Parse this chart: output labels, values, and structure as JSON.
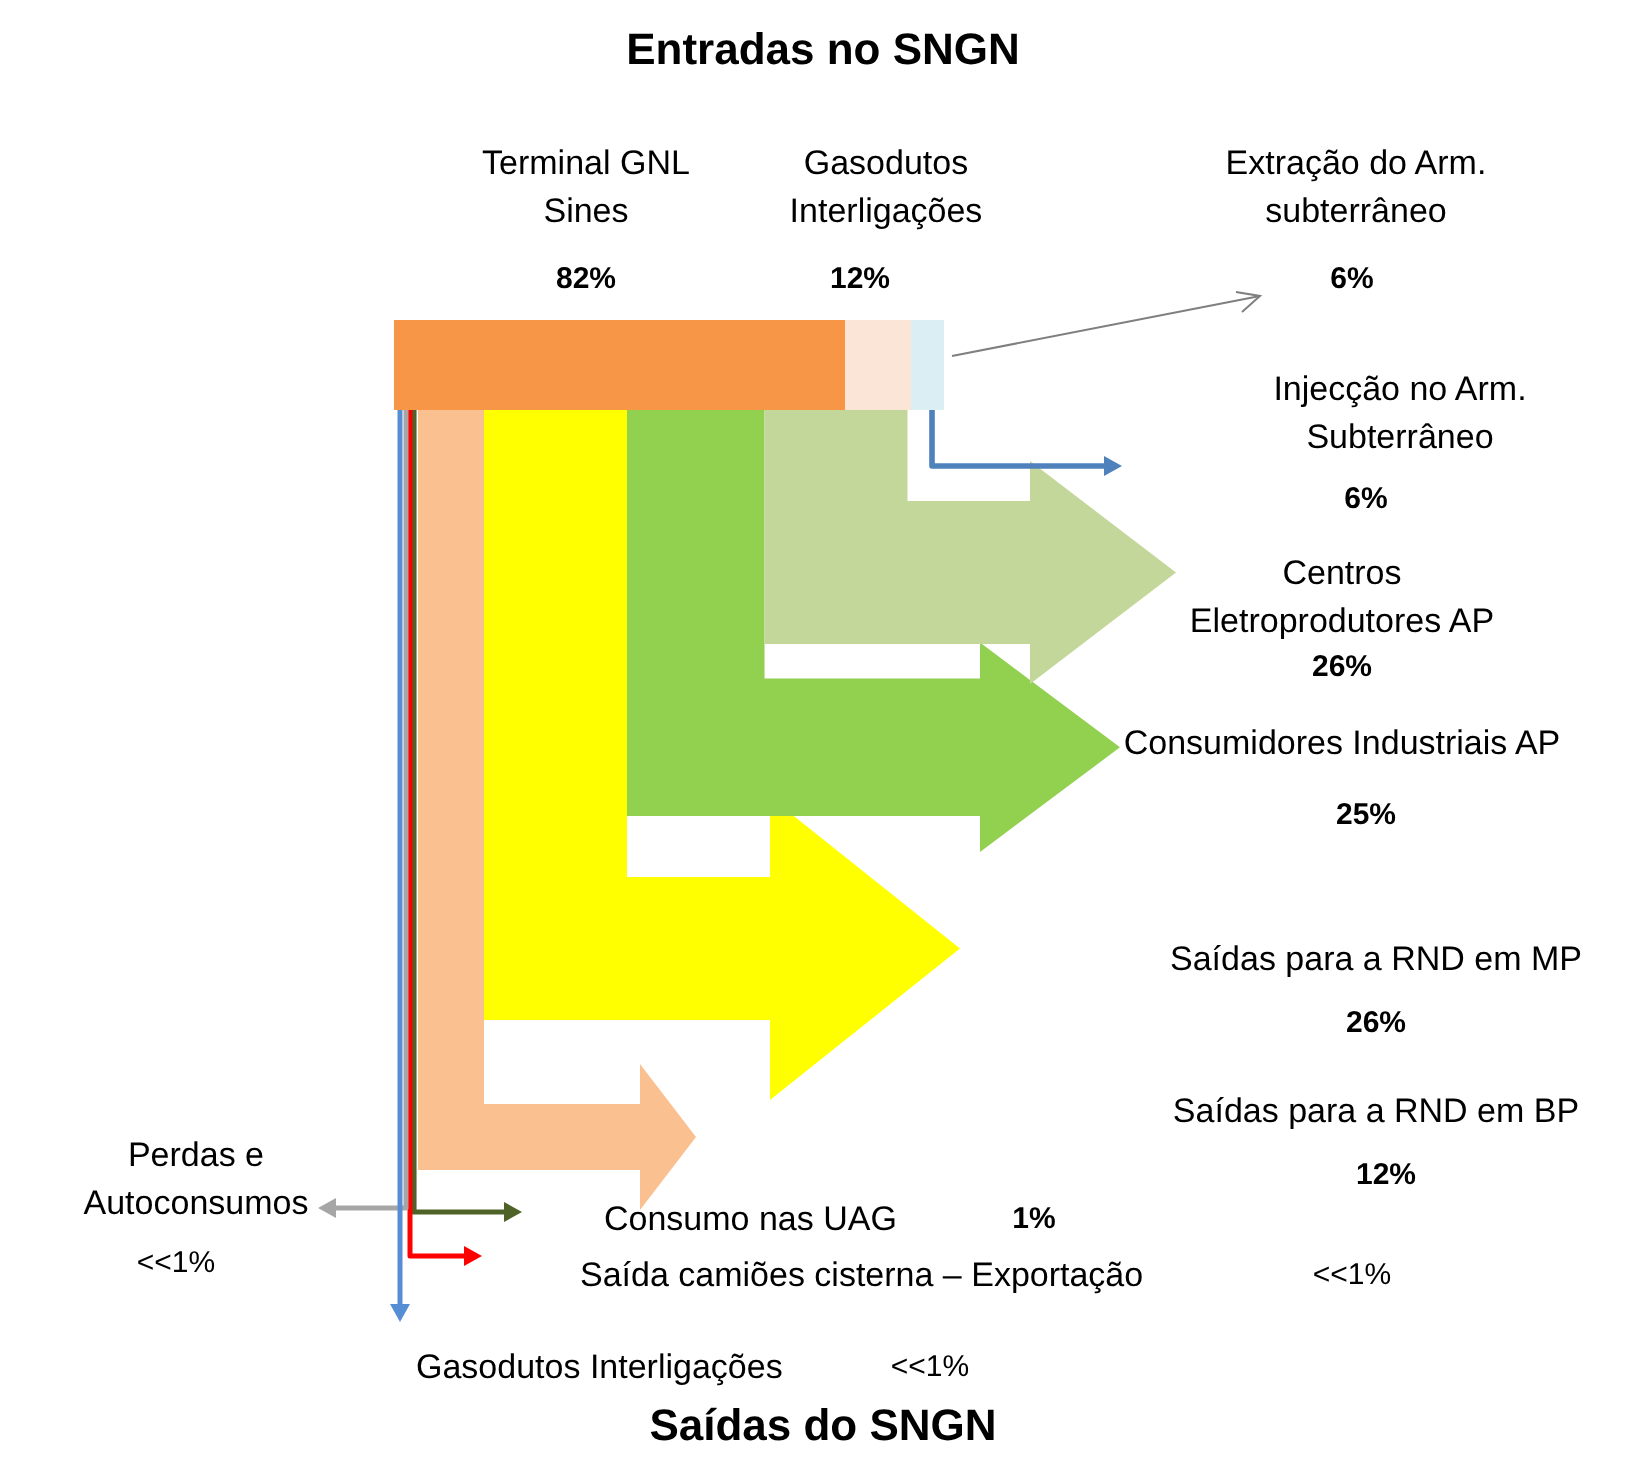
{
  "chart_data": {
    "type": "other",
    "title": "Entradas no SNGN",
    "annotations": [
      "Saídas do SNGN"
    ],
    "categories": [
      "Terminal GNL Sines",
      "Gasodutos Interligações",
      "Extração do Arm. subterrâneo",
      "Injecção no Arm. Subterrâneo",
      "Centros Eletroprodutores AP",
      "Consumidores Industriais AP",
      "Saídas para a RND em MP",
      "Saídas para a RND em BP",
      "Consumo nas UAG",
      "Saída camiões cisterna – Exportação",
      "Perdas e Autoconsumos",
      "Gasodutos Interligações"
    ],
    "series": [
      {
        "values": [
          82,
          12,
          6,
          null,
          null,
          null,
          null,
          null,
          null,
          null,
          null,
          null
        ],
        "value_labels": [
          "82%",
          "12%",
          "6%",
          null,
          null,
          null,
          null,
          null,
          null,
          null,
          null,
          null
        ],
        "colors": [
          "#f79646",
          "#fbe5d6",
          "#dbeef4",
          null,
          null,
          null,
          null,
          null,
          null,
          null,
          null,
          null
        ]
      },
      {
        "values": [
          null,
          null,
          null,
          6,
          26,
          25,
          26,
          12,
          1,
          null,
          null,
          null
        ],
        "value_labels": [
          null,
          null,
          null,
          "6%",
          "26%",
          "25%",
          "26%",
          "12%",
          "1%",
          "<<1%",
          "<<1%",
          "<<1%"
        ],
        "colors": [
          null,
          null,
          null,
          "#4f81bd",
          "#c4d79b",
          "#92d050",
          "#ffff00",
          "#fac090",
          "#4f6228",
          "#ff0000",
          "#a6a6a6",
          "#558ed5"
        ]
      }
    ]
  }
}
